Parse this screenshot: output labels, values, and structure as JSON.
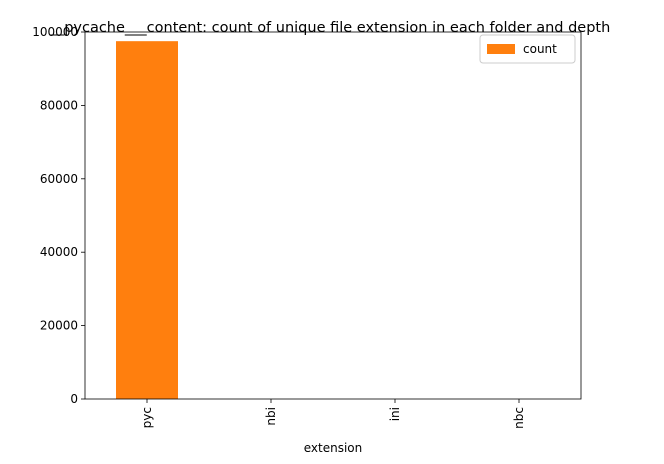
{
  "chart_data": {
    "type": "bar",
    "title": "__pycache___content: count of unique file extension in each folder and depth",
    "xlabel": "extension",
    "ylabel": "",
    "categories": [
      "pyc",
      "nbi",
      "ini",
      "nbc"
    ],
    "series": [
      {
        "name": "count",
        "values": [
          97500,
          1,
          1,
          1
        ]
      }
    ],
    "ylim": [
      0,
      100000
    ],
    "yticks": [
      0,
      20000,
      40000,
      60000,
      80000,
      100000
    ],
    "grid": false,
    "legend": "top-right",
    "bar_color": "#ff7f0e"
  }
}
